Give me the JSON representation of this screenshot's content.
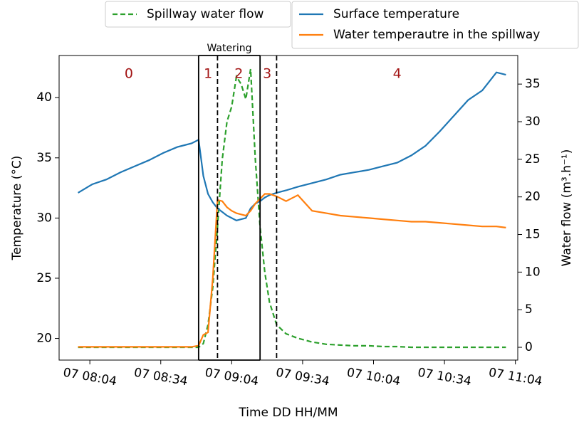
{
  "chart_data": {
    "type": "line",
    "xlabel": "Time DD HH/MM",
    "ylabel": "Temperature (°C)",
    "y2label": "Water flow (m³.h⁻¹)",
    "x": [
      "07 07:59",
      "07 08:05",
      "07 08:11",
      "07 08:17",
      "07 08:23",
      "07 08:29",
      "07 08:35",
      "07 08:41",
      "07 08:47",
      "07 08:50",
      "07 08:52",
      "07 08:54",
      "07 08:56",
      "07 08:58",
      "07 09:00",
      "07 09:02",
      "07 09:04",
      "07 09:06",
      "07 09:08",
      "07 09:10",
      "07 09:12",
      "07 09:14",
      "07 09:16",
      "07 09:18",
      "07 09:20",
      "07 09:23",
      "07 09:27",
      "07 09:32",
      "07 09:38",
      "07 09:44",
      "07 09:50",
      "07 09:56",
      "07 10:02",
      "07 10:08",
      "07 10:14",
      "07 10:20",
      "07 10:26",
      "07 10:32",
      "07 10:38",
      "07 10:44",
      "07 10:50",
      "07 10:56",
      "07 11:00"
    ],
    "series": [
      {
        "name": "Spillway water flow",
        "color": "#2ca02c",
        "dashed": true,
        "axis": "y2",
        "values": [
          0,
          0,
          0,
          0,
          0,
          0,
          0,
          0,
          0,
          0,
          0.5,
          3,
          8,
          16,
          25,
          30,
          32,
          36,
          35,
          33,
          37,
          25,
          16,
          10,
          6,
          3,
          1.8,
          1.2,
          0.7,
          0.4,
          0.3,
          0.2,
          0.2,
          0.1,
          0.1,
          0,
          0,
          0,
          0,
          0,
          0,
          0,
          0
        ]
      },
      {
        "name": "Surface temperature",
        "color": "#1f77b4",
        "values": [
          32.1,
          32.8,
          33.2,
          33.8,
          34.3,
          34.8,
          35.4,
          35.9,
          36.2,
          36.5,
          33.5,
          32.0,
          31.3,
          30.8,
          30.5,
          30.2,
          30.0,
          29.8,
          29.9,
          30.0,
          30.8,
          31.2,
          31.4,
          31.7,
          31.9,
          32.1,
          32.3,
          32.6,
          32.9,
          33.2,
          33.6,
          33.8,
          34.0,
          34.3,
          34.6,
          35.2,
          36.0,
          37.2,
          38.5,
          39.8,
          40.6,
          42.1,
          41.9
        ]
      },
      {
        "name": "Water temperautre in the spillway",
        "color": "#ff7f0e",
        "values": [
          19.3,
          19.3,
          19.3,
          19.3,
          19.3,
          19.3,
          19.3,
          19.3,
          19.3,
          19.4,
          20.3,
          20.5,
          25.0,
          31.5,
          31.4,
          30.9,
          30.6,
          30.4,
          30.3,
          30.2,
          30.6,
          31.2,
          31.6,
          32.0,
          32.0,
          31.8,
          31.4,
          31.9,
          30.6,
          30.4,
          30.2,
          30.1,
          30.0,
          29.9,
          29.8,
          29.7,
          29.7,
          29.6,
          29.5,
          29.4,
          29.3,
          29.3,
          29.2
        ]
      }
    ],
    "xlim": [
      "07 07:51",
      "07 11:05"
    ],
    "xticks": [
      "07 08:04",
      "07 08:34",
      "07 09:04",
      "07 09:34",
      "07 10:04",
      "07 10:34",
      "07 11:04"
    ],
    "ylim": [
      18.2,
      43.5
    ],
    "yticks": [
      20,
      25,
      30,
      35,
      40
    ],
    "y2lim": [
      -1.7,
      38.8
    ],
    "y2ticks": [
      0,
      5,
      10,
      15,
      20,
      25,
      30,
      35
    ],
    "vlines": [
      {
        "x": "07 08:50",
        "style": "solid"
      },
      {
        "x": "07 08:58",
        "style": "dashed"
      },
      {
        "x": "07 09:16",
        "style": "solid"
      },
      {
        "x": "07 09:23",
        "style": "dashed"
      }
    ],
    "phases": [
      {
        "text": "0",
        "x": "07 08:17"
      },
      {
        "text": "1",
        "x": "07 08:54"
      },
      {
        "text": "2",
        "x": "07 09:07"
      },
      {
        "text": "3",
        "x": "07 09:19"
      },
      {
        "text": "4",
        "x": "07 09:07"
      }
    ],
    "watering": "Watering",
    "phase_color": "#a31515"
  }
}
